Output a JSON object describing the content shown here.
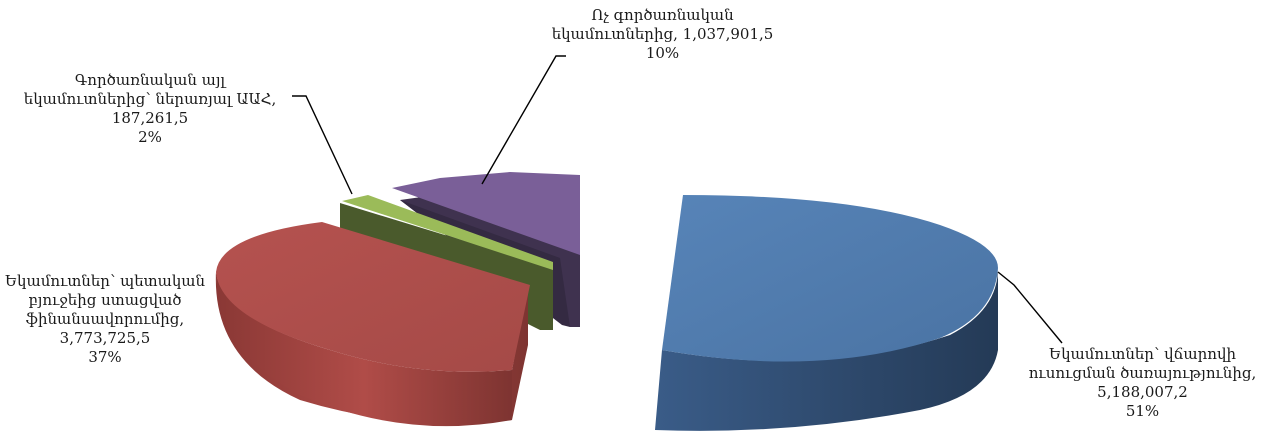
{
  "chart_data": {
    "type": "pie",
    "style": "3d-exploded",
    "slices": [
      {
        "label_lines": [
          "Եկամուտներ՝ վճարովի",
          "ուսուցման ծառայությունից,"
        ],
        "value_text": "5,188,007,2",
        "value": 5188007.2,
        "percent_text": "51%",
        "color": "#4f7aab",
        "side_color": "#2d4566"
      },
      {
        "label_lines": [
          "Եկամուտներ՝ պետական",
          "բյուջեից ստացված",
          "ֆինանսավորումից,"
        ],
        "value_text": "3,773,725,5",
        "value": 3773725.5,
        "percent_text": "37%",
        "color": "#ad4f4c",
        "side_color": "#7a302e"
      },
      {
        "label_lines": [
          "Գործառնական այլ",
          "եկամուտներից՝ ներառյալ ԱԱՀ,"
        ],
        "value_text": "187,261,5",
        "value": 187261.5,
        "percent_text": "2%",
        "color": "#9bbb59",
        "side_color": "#4a5a2c"
      },
      {
        "label_lines": [
          "Ոչ գործառնական",
          "եկամուտներից, 1,037,901,5"
        ],
        "value_text": "",
        "value": 1037901.5,
        "percent_text": "10%",
        "color": "#7a5f98",
        "side_color": "#3f324f"
      }
    ]
  }
}
